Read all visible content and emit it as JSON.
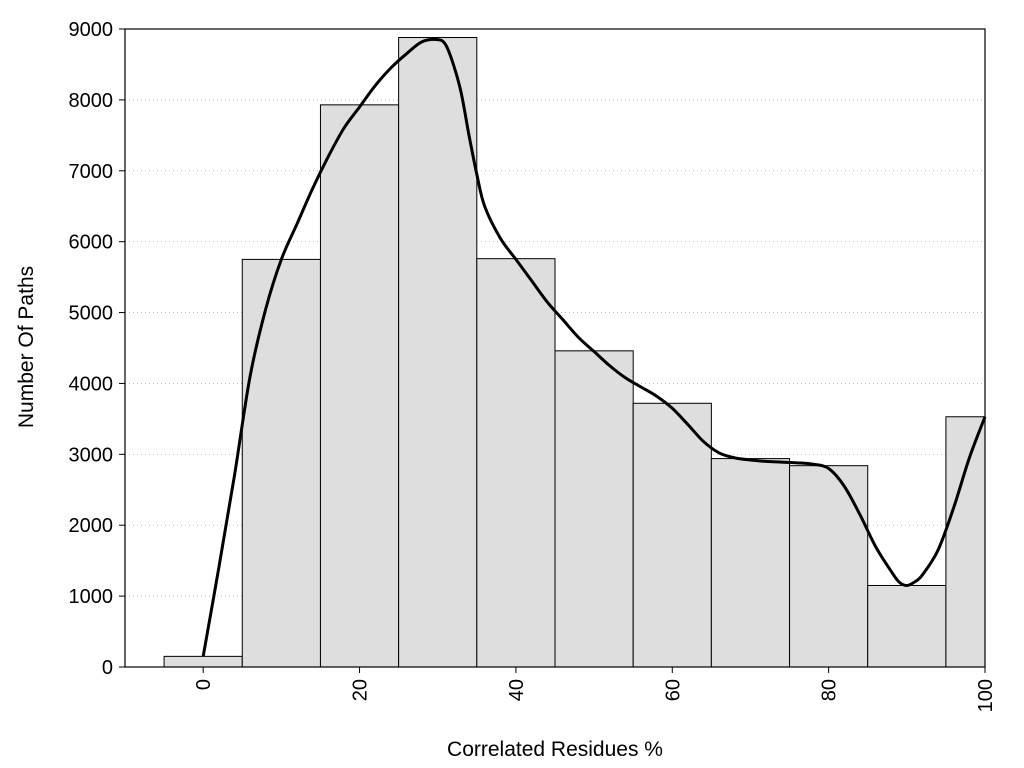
{
  "chart_data": {
    "type": "bar",
    "title": "",
    "xlabel": "Correlated Residues %",
    "ylabel": "Number Of Paths",
    "xlim": [
      -10,
      100
    ],
    "ylim": [
      0,
      9000
    ],
    "x_ticks": [
      0,
      20,
      40,
      60,
      80,
      100
    ],
    "y_ticks": [
      0,
      1000,
      2000,
      3000,
      4000,
      5000,
      6000,
      7000,
      8000,
      9000
    ],
    "grid": "horizontal dotted",
    "bins": [
      {
        "center": 0,
        "value": 150
      },
      {
        "center": 10,
        "value": 5750
      },
      {
        "center": 20,
        "value": 7930
      },
      {
        "center": 30,
        "value": 8880
      },
      {
        "center": 40,
        "value": 5760
      },
      {
        "center": 50,
        "value": 4460
      },
      {
        "center": 60,
        "value": 3720
      },
      {
        "center": 70,
        "value": 2940
      },
      {
        "center": 80,
        "value": 2840
      },
      {
        "center": 90,
        "value": 1150
      },
      {
        "center": 100,
        "value": 3530
      }
    ],
    "bin_width": 10,
    "curve": {
      "type": "smoothed",
      "points": [
        [
          0,
          150
        ],
        [
          2,
          1400
        ],
        [
          4,
          2700
        ],
        [
          6,
          4100
        ],
        [
          8,
          5050
        ],
        [
          10,
          5750
        ],
        [
          12,
          6250
        ],
        [
          14,
          6750
        ],
        [
          16,
          7200
        ],
        [
          18,
          7600
        ],
        [
          20,
          7900
        ],
        [
          22,
          8200
        ],
        [
          24,
          8450
        ],
        [
          26,
          8650
        ],
        [
          28,
          8820
        ],
        [
          30,
          8850
        ],
        [
          31,
          8780
        ],
        [
          32,
          8500
        ],
        [
          33,
          8100
        ],
        [
          34,
          7500
        ],
        [
          35,
          6950
        ],
        [
          36,
          6500
        ],
        [
          38,
          6050
        ],
        [
          40,
          5750
        ],
        [
          42,
          5450
        ],
        [
          44,
          5150
        ],
        [
          46,
          4900
        ],
        [
          48,
          4650
        ],
        [
          50,
          4450
        ],
        [
          52,
          4250
        ],
        [
          54,
          4080
        ],
        [
          56,
          3950
        ],
        [
          58,
          3820
        ],
        [
          60,
          3650
        ],
        [
          62,
          3420
        ],
        [
          64,
          3180
        ],
        [
          66,
          3020
        ],
        [
          68,
          2950
        ],
        [
          70,
          2920
        ],
        [
          72,
          2900
        ],
        [
          74,
          2890
        ],
        [
          76,
          2880
        ],
        [
          78,
          2860
        ],
        [
          80,
          2800
        ],
        [
          82,
          2550
        ],
        [
          84,
          2150
        ],
        [
          86,
          1700
        ],
        [
          88,
          1350
        ],
        [
          89,
          1200
        ],
        [
          90,
          1150
        ],
        [
          91,
          1200
        ],
        [
          92,
          1300
        ],
        [
          94,
          1650
        ],
        [
          96,
          2250
        ],
        [
          98,
          2950
        ],
        [
          100,
          3530
        ]
      ]
    },
    "colors": {
      "bar_fill": "#dedede",
      "bar_stroke": "#000000",
      "curve": "#000000",
      "grid": "#bbbbbb"
    }
  }
}
